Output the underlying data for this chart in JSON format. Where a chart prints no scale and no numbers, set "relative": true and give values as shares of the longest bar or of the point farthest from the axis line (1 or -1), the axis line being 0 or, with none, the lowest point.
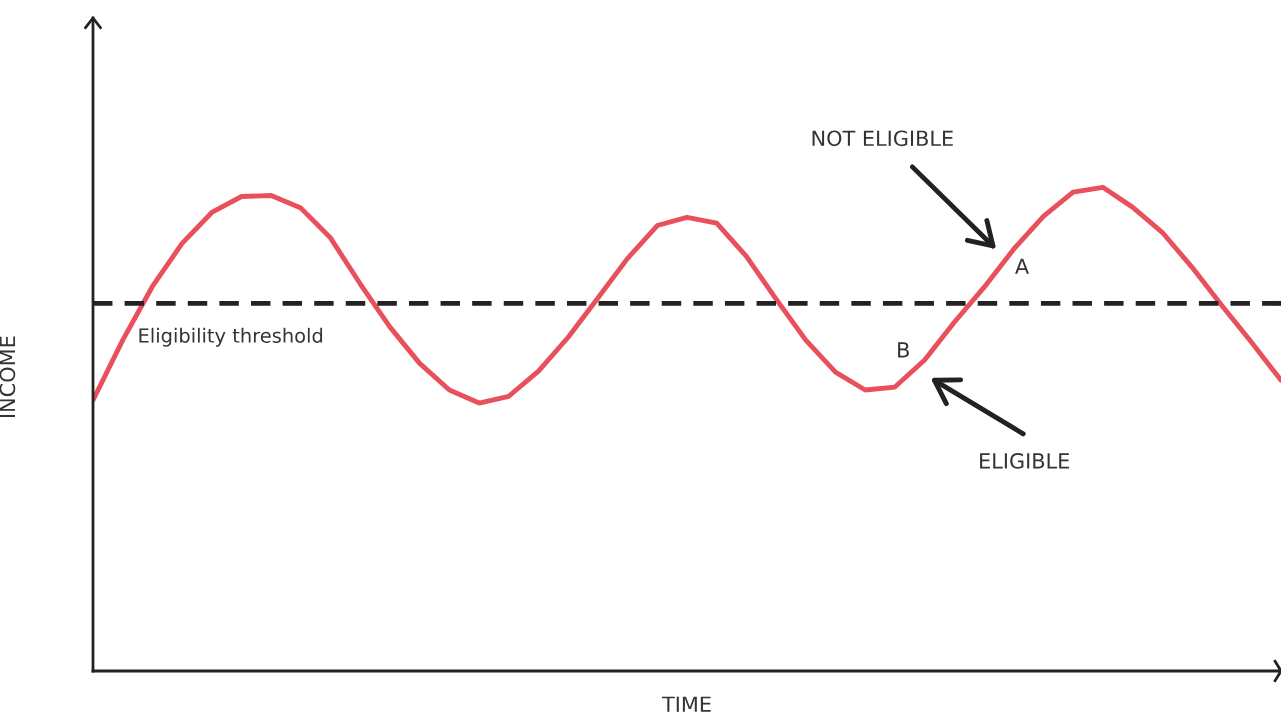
{
  "chart_data": {
    "type": "line",
    "relative": true,
    "xlabel": "TIME",
    "ylabel": "INCOME",
    "categories": [
      null,
      null,
      null,
      null,
      null,
      null,
      null,
      null,
      null,
      null,
      null,
      null,
      null,
      null,
      null,
      null,
      null,
      null,
      null,
      null,
      null,
      null,
      null,
      null,
      null,
      null,
      null,
      null,
      null,
      null,
      null,
      null,
      null,
      null,
      null,
      null,
      null,
      null,
      null,
      null,
      null
    ],
    "series": [
      {
        "color": "#e8505b",
        "values": [
          0.56,
          0.684,
          0.795,
          0.884,
          0.948,
          0.981,
          0.983,
          0.957,
          0.895,
          0.8,
          0.711,
          0.636,
          0.581,
          0.554,
          0.568,
          0.62,
          0.69,
          0.771,
          0.853,
          0.921,
          0.938,
          0.926,
          0.857,
          0.769,
          0.684,
          0.618,
          0.581,
          0.587,
          0.643,
          0.721,
          0.793,
          0.872,
          0.94,
          0.99,
          1.0,
          0.959,
          0.907,
          0.835,
          0.756,
          0.68,
          0.601
        ]
      }
    ],
    "ref_lines": [
      {
        "axis": "y",
        "value": 0.76,
        "label": "Eligibility threshold",
        "color": "#222222",
        "line_style": "dashed"
      }
    ],
    "annotations": [
      "NOT ELIGIBLE",
      "A",
      "B",
      "ELIGIBLE"
    ],
    "legend": false,
    "marker": "none",
    "line_style": "solid",
    "tick_labels": false
  }
}
